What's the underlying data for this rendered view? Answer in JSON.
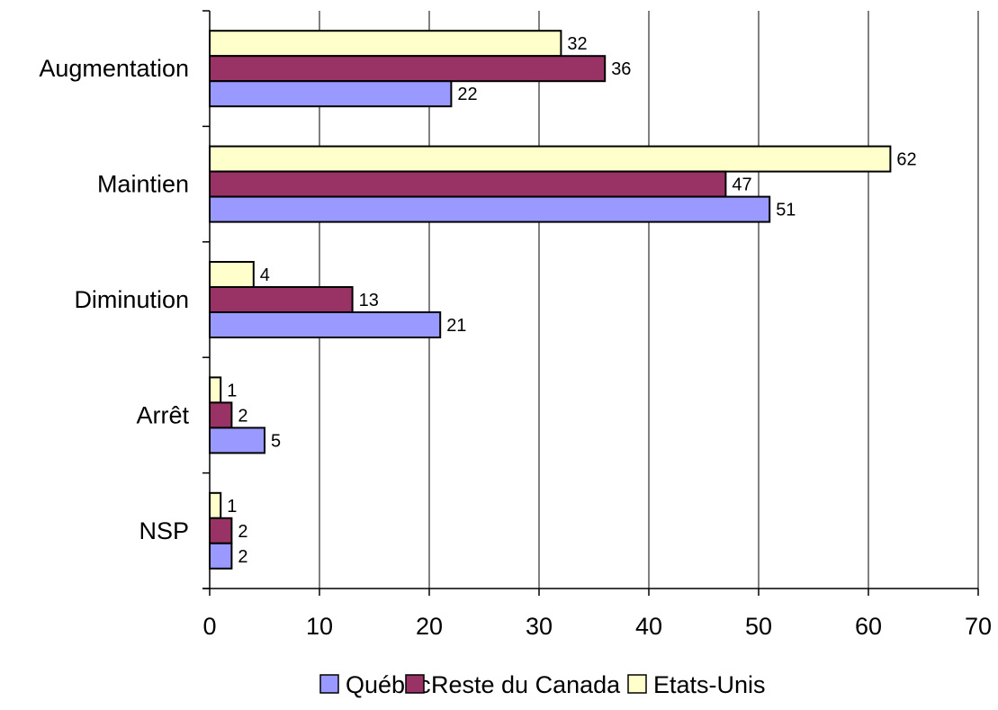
{
  "chart_data": {
    "type": "bar",
    "orientation": "horizontal",
    "categories": [
      "Augmentation",
      "Maintien",
      "Diminution",
      "Arrêt",
      "NSP"
    ],
    "series": [
      {
        "name": "Québec",
        "color": "#9999ff",
        "values": [
          22,
          51,
          21,
          5,
          2
        ]
      },
      {
        "name": "Reste du Canada",
        "color": "#993366",
        "values": [
          36,
          47,
          13,
          2,
          2
        ]
      },
      {
        "name": "Etats-Unis",
        "color": "#ffffcc",
        "values": [
          32,
          62,
          4,
          1,
          1
        ]
      }
    ],
    "xlim": [
      0,
      70
    ],
    "xticks": [
      0,
      10,
      20,
      30,
      40,
      50,
      60,
      70
    ],
    "grid": "vertical",
    "legend": "bottom",
    "title": "",
    "xlabel": "",
    "ylabel": ""
  }
}
